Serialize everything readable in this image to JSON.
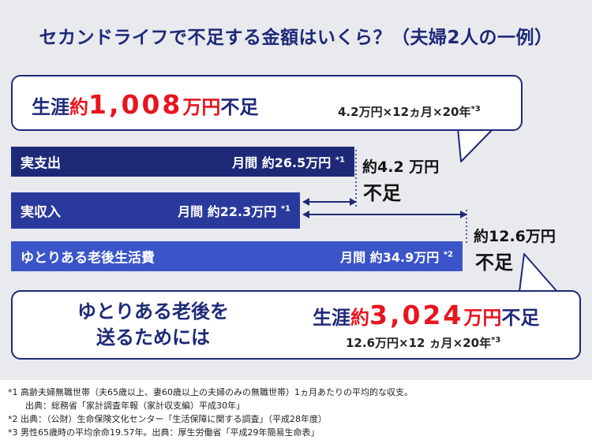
{
  "title": "セカンドライフで不足する金額はいくら？（夫婦2人の一例）",
  "chart_data": {
    "type": "bar",
    "orientation": "horizontal",
    "unit": "万円",
    "categories": [
      "実支出",
      "実収入",
      "ゆとりある老後生活費"
    ],
    "values": [
      26.5,
      22.3,
      34.9
    ],
    "value_labels": [
      "月間 約26.5万円",
      "月間 約22.3万円",
      "月間 約34.9万円"
    ],
    "footnote_marks": [
      "*1",
      "*1",
      "*2"
    ],
    "gaps": [
      {
        "between": [
          "実収入",
          "実支出"
        ],
        "value": 4.2,
        "label_num": "約4.2 万円",
        "label_word": "不足"
      },
      {
        "between": [
          "実収入",
          "ゆとりある老後生活費"
        ],
        "value": 12.6,
        "label_num": "約12.6万円",
        "label_word": "不足"
      }
    ]
  },
  "bubble1": {
    "prefix": "生涯",
    "approx": "約",
    "amount": "1,008",
    "unit": "万円",
    "suffix": "不足",
    "calc": "4.2万円×12ヵ月×20年",
    "calc_mark": "*3"
  },
  "bubble2": {
    "line1": "ゆとりある老後を",
    "line2": "送るためには",
    "prefix": "生涯",
    "approx": "約",
    "amount": "3,024",
    "unit": "万円",
    "suffix": "不足",
    "calc": "12.6万円×12 ヵ月×20年",
    "calc_mark": "*3"
  },
  "notes": [
    "*1 高齢夫婦無職世帯（夫65歳以上、妻60歳以上の夫婦のみの無職世帯）1ヵ月あたりの平均的な収支。",
    "　　出典：総務省「家計調査年報（家計収支編）平成30年」",
    "*2 出典：（公財）生命保険文化センター「生活保障に関する調査」（平成28年度）",
    "*3 男性65歳時の平均余命19.57年。出典：厚生労働省「平成29年簡易生命表」"
  ],
  "colors": {
    "navy": "#1e2a78",
    "bar2": "#2a3a9c",
    "bar3": "#3b55c9",
    "red": "#e8141e",
    "panel": "#e9eaee"
  }
}
